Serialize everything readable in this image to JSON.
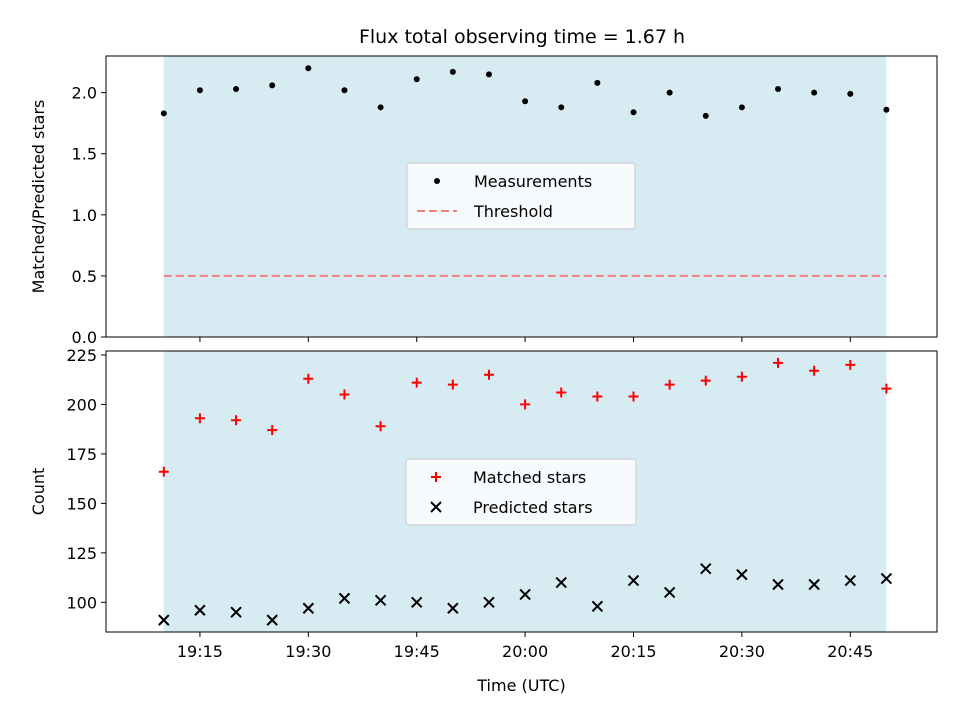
{
  "title": "Flux total observing time = 1.67 h",
  "colors": {
    "shade": "#add8e6",
    "measurement": "#000000",
    "threshold": "#f08080",
    "matched": "#ff0000",
    "predicted": "#000000"
  },
  "chart_data": [
    {
      "type": "scatter",
      "panel": "top",
      "ylabel": "Matched/Predicted stars",
      "ylim": [
        0,
        2.3
      ],
      "yticks": [
        "0.0",
        "0.5",
        "1.0",
        "1.5",
        "2.0"
      ],
      "ytick_values": [
        0,
        0.5,
        1.0,
        1.5,
        2.0
      ],
      "shaded_x_range": [
        "19:10",
        "20:50"
      ],
      "legend_position": "center",
      "series": [
        {
          "name": "Measurements",
          "marker": "dot",
          "x": [
            "19:10",
            "19:15",
            "19:20",
            "19:25",
            "19:30",
            "19:35",
            "19:40",
            "19:45",
            "19:50",
            "19:55",
            "20:00",
            "20:05",
            "20:10",
            "20:15",
            "20:20",
            "20:25",
            "20:30",
            "20:35",
            "20:40",
            "20:45",
            "20:50"
          ],
          "y": [
            1.83,
            2.02,
            2.03,
            2.06,
            2.2,
            2.02,
            1.88,
            2.11,
            2.17,
            2.15,
            1.93,
            1.88,
            2.08,
            1.84,
            2.0,
            1.81,
            1.88,
            2.03,
            2.0,
            1.99,
            1.86
          ]
        },
        {
          "name": "Threshold",
          "marker": "dashed-line",
          "x": [
            "19:10",
            "20:50"
          ],
          "y": [
            0.5,
            0.5
          ]
        }
      ]
    },
    {
      "type": "scatter",
      "panel": "bottom",
      "xlabel": "Time (UTC)",
      "ylabel": "Count",
      "ylim": [
        85,
        227
      ],
      "yticks": [
        "100",
        "125",
        "150",
        "175",
        "200",
        "225"
      ],
      "ytick_values": [
        100,
        125,
        150,
        175,
        200,
        225
      ],
      "xticks": [
        "19:15",
        "19:30",
        "19:45",
        "20:00",
        "20:15",
        "20:30",
        "20:45"
      ],
      "shaded_x_range": [
        "19:10",
        "20:50"
      ],
      "legend_position": "center",
      "series": [
        {
          "name": "Matched stars",
          "marker": "plus",
          "x": [
            "19:10",
            "19:15",
            "19:20",
            "19:25",
            "19:30",
            "19:35",
            "19:40",
            "19:45",
            "19:50",
            "19:55",
            "20:00",
            "20:05",
            "20:10",
            "20:15",
            "20:20",
            "20:25",
            "20:30",
            "20:35",
            "20:40",
            "20:45",
            "20:50"
          ],
          "y": [
            166,
            193,
            192,
            187,
            213,
            205,
            189,
            211,
            210,
            215,
            200,
            206,
            204,
            204,
            210,
            212,
            214,
            221,
            217,
            220,
            208
          ]
        },
        {
          "name": "Predicted stars",
          "marker": "x",
          "x": [
            "19:10",
            "19:15",
            "19:20",
            "19:25",
            "19:30",
            "19:35",
            "19:40",
            "19:45",
            "19:50",
            "19:55",
            "20:00",
            "20:05",
            "20:10",
            "20:15",
            "20:20",
            "20:25",
            "20:30",
            "20:35",
            "20:40",
            "20:45",
            "20:50"
          ],
          "y": [
            91,
            96,
            95,
            91,
            97,
            102,
            101,
            100,
            97,
            100,
            104,
            110,
            98,
            111,
            105,
            117,
            114,
            109,
            109,
            111,
            112
          ]
        }
      ]
    }
  ]
}
